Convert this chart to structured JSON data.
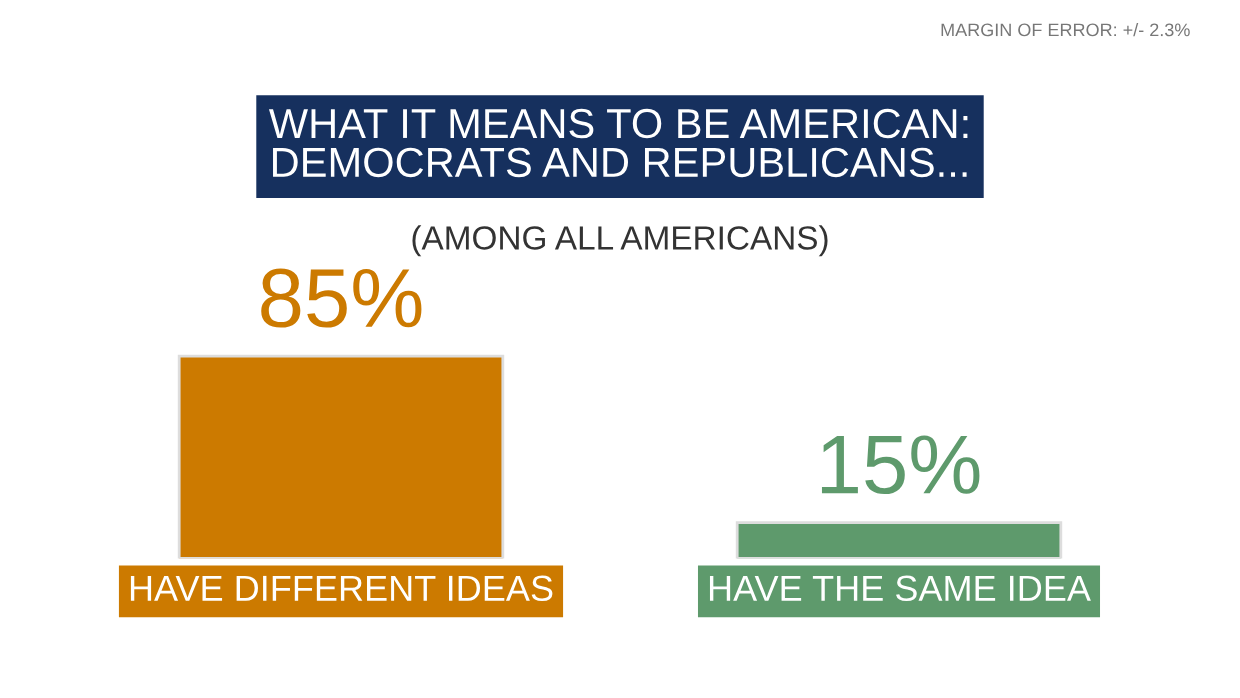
{
  "chart_data": {
    "type": "bar",
    "title": "WHAT IT MEANS TO BE AMERICAN:\nDEMOCRATS AND REPUBLICANS...",
    "subtitle": "(AMONG ALL AMERICANS)",
    "categories": [
      "HAVE DIFFERENT IDEAS",
      "HAVE THE SAME IDEA"
    ],
    "values": [
      85,
      15
    ],
    "colors": [
      "#cc7a00",
      "#5e9a6c"
    ],
    "value_labels": [
      "85%",
      "15%"
    ],
    "annotations": [
      "MARGIN OF ERROR: +/- 2.3%"
    ]
  }
}
